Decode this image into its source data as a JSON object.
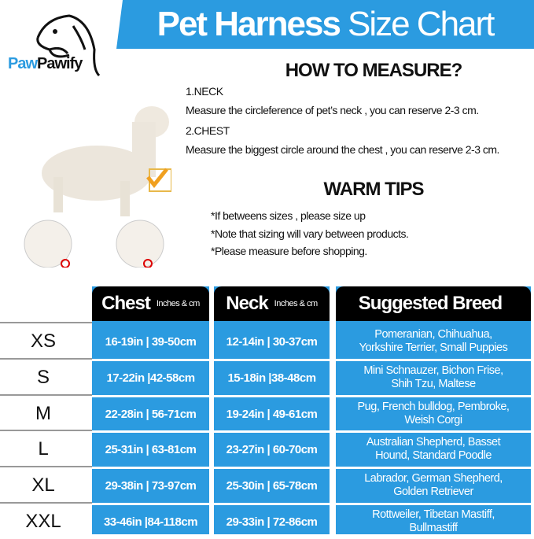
{
  "brand": {
    "name_part1": "Paw",
    "name_part2": "Pawify"
  },
  "banner": {
    "title_bold": "Pet Harness",
    "title_light": "Size Chart",
    "color": "#2b9be0"
  },
  "measure": {
    "heading": "HOW TO MEASURE?",
    "neck_label": "1.NECK",
    "neck_text": "Measure the circleference of pet’s neck , you can reserve 2-3 cm.",
    "chest_label": "2.CHEST",
    "chest_text": "Measure the biggest circle around the chest , you can reserve 2-3 cm."
  },
  "tips": {
    "heading": "WARM TIPS",
    "items": [
      "*If betweens sizes , please size up",
      "*Note that sizing will vary between products.",
      "*Please measure before shopping."
    ]
  },
  "table": {
    "headers": {
      "chest": "Chest",
      "chest_unit": "Inches & cm",
      "neck": "Neck",
      "neck_unit": "Inches & cm",
      "breed": "Suggested Breed"
    },
    "rows": [
      {
        "size": "XS",
        "chest": "16-19in | 39-50cm",
        "neck": "12-14in | 30-37cm",
        "breed": "Pomeranian, Chihuahua,\nYorkshire Terrier, Small Puppies"
      },
      {
        "size": "S",
        "chest": "17-22in |42-58cm",
        "neck": "15-18in |38-48cm",
        "breed": "Mini Schnauzer, Bichon Frise,\nShih Tzu, Maltese"
      },
      {
        "size": "M",
        "chest": "22-28in | 56-71cm",
        "neck": "19-24in | 49-61cm",
        "breed": "Pug, French bulldog, Pembroke,\nWeish Corgi"
      },
      {
        "size": "L",
        "chest": "25-31in | 63-81cm",
        "neck": "23-27in | 60-70cm",
        "breed": "Australian Shepherd, Basset\nHound, Standard Poodle"
      },
      {
        "size": "XL",
        "chest": "29-38in | 73-97cm",
        "neck": "25-30in | 65-78cm",
        "breed": "Labrador, German Shepherd,\nGolden Retriever"
      },
      {
        "size": "XXL",
        "chest": "33-46in |84-118cm",
        "neck": "29-33in | 72-86cm",
        "breed": "Rottweiler, Tibetan Mastiff,\nBullmastiff"
      }
    ]
  }
}
